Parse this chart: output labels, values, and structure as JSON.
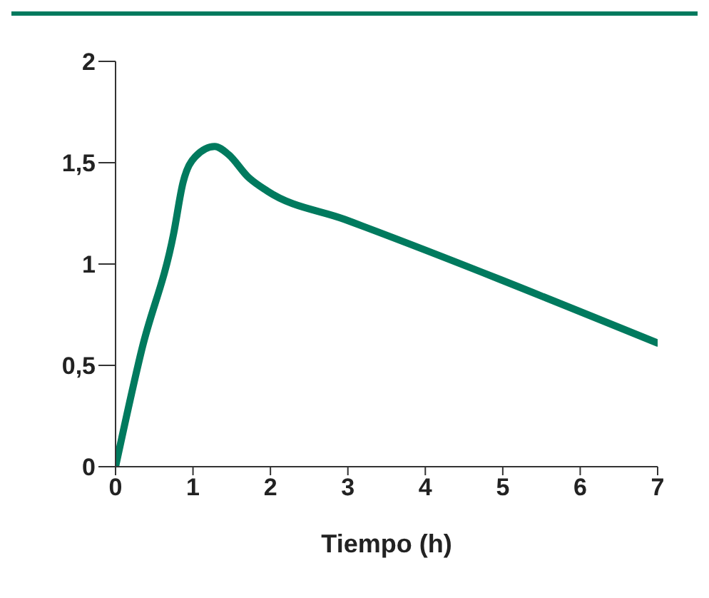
{
  "chart_data": {
    "type": "line",
    "xlabel": "Tiempo (h)",
    "x": [
      0,
      0.34,
      0.75,
      0.87,
      1.03,
      1.28,
      1.46,
      1.71,
      1.96,
      2.96,
      7
    ],
    "series": [
      {
        "color": "#007a5e",
        "values": [
          0,
          0.58,
          1.15,
          1.4,
          1.53,
          1.58,
          1.54,
          1.43,
          1.36,
          1.22,
          0.61
        ]
      }
    ],
    "xlim": [
      0,
      7
    ],
    "xticks": [
      0,
      1,
      2,
      3,
      4,
      5,
      6,
      7
    ],
    "ylim": [
      0,
      2
    ],
    "yticks": [
      0,
      {
        "value": 0.5,
        "label": "0,5"
      },
      1,
      {
        "value": 1.5,
        "label": "1,5"
      },
      2
    ],
    "grid": false,
    "legend": false,
    "marker": "none",
    "line_style": "solid"
  }
}
